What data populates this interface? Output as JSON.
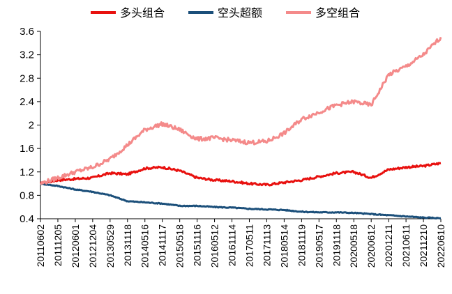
{
  "chart_data": {
    "type": "line",
    "title": "",
    "xlabel": "",
    "ylabel": "",
    "ylim": [
      0.4,
      3.6
    ],
    "y_ticks": [
      "0.4",
      "0.8",
      "1.2",
      "1.6",
      "2",
      "2.4",
      "2.8",
      "3.2",
      "3.6"
    ],
    "x_tick_labels": [
      "20110602",
      "20111205",
      "20120601",
      "20121204",
      "20130529",
      "20131118",
      "20140516",
      "20141117",
      "20150518",
      "20151116",
      "20160512",
      "20161114",
      "20170511",
      "20171113",
      "20180514",
      "20181119",
      "20190517",
      "20191118",
      "20200518",
      "20200612",
      "20201211",
      "20210611",
      "20211210",
      "20220610"
    ],
    "grid": false,
    "legend_position": "top",
    "x": [
      "20110602",
      "20111205",
      "20120601",
      "20121204",
      "20130529",
      "20131118",
      "20140516",
      "20141117",
      "20150518",
      "20151116",
      "20160512",
      "20161114",
      "20170511",
      "20171113",
      "20180514",
      "20181119",
      "20190517",
      "20191118",
      "20200518",
      "20200612",
      "20201211",
      "20210611",
      "20211210",
      "20220610"
    ],
    "series": [
      {
        "name": "多头组合",
        "color": "#e8110f",
        "values": [
          1.0,
          1.06,
          1.08,
          1.1,
          1.18,
          1.16,
          1.26,
          1.28,
          1.22,
          1.1,
          1.06,
          1.04,
          1.0,
          0.98,
          1.02,
          1.06,
          1.12,
          1.18,
          1.2,
          1.1,
          1.24,
          1.28,
          1.3,
          1.35
        ]
      },
      {
        "name": "空头超额",
        "color": "#1b4f7a",
        "values": [
          1.0,
          0.96,
          0.9,
          0.86,
          0.8,
          0.7,
          0.68,
          0.66,
          0.62,
          0.62,
          0.6,
          0.59,
          0.57,
          0.56,
          0.55,
          0.52,
          0.51,
          0.51,
          0.5,
          0.48,
          0.46,
          0.44,
          0.42,
          0.41
        ]
      },
      {
        "name": "多空组合",
        "color": "#f48a8a",
        "values": [
          1.0,
          1.1,
          1.2,
          1.28,
          1.42,
          1.66,
          1.92,
          2.02,
          1.92,
          1.76,
          1.78,
          1.74,
          1.7,
          1.72,
          1.86,
          2.1,
          2.22,
          2.34,
          2.4,
          2.34,
          2.86,
          3.0,
          3.2,
          3.5
        ]
      }
    ]
  }
}
